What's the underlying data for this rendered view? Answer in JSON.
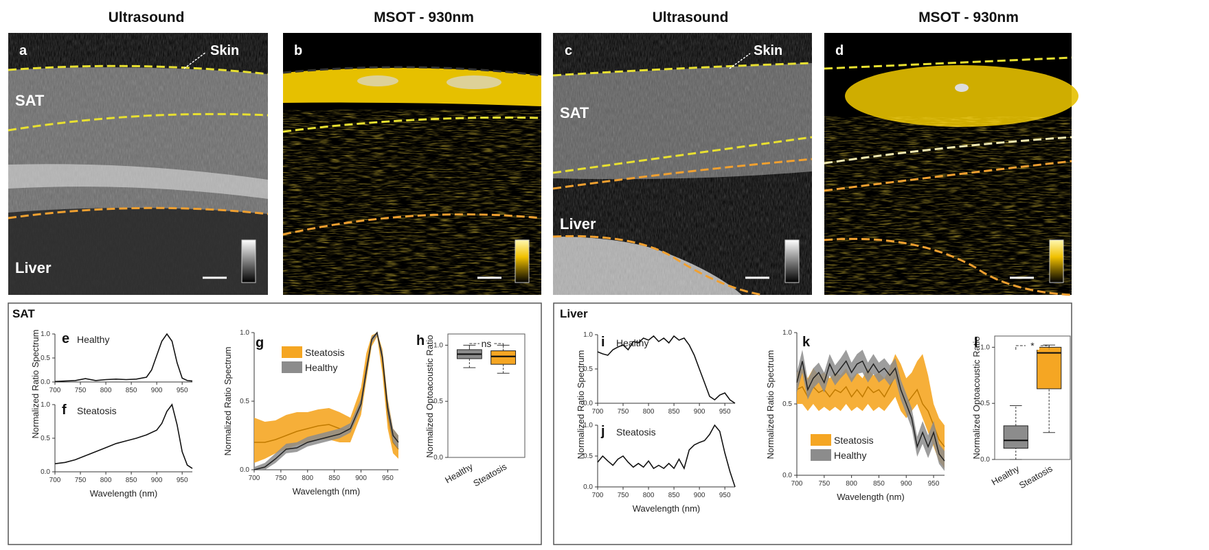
{
  "titles": [
    "Ultrasound",
    "MSOT - 930nm",
    "Ultrasound",
    "MSOT - 930nm"
  ],
  "panel_letters": [
    "a",
    "b",
    "c",
    "d"
  ],
  "image_labels": {
    "a": {
      "skin": "Skin",
      "sat": "SAT",
      "liver": "Liver"
    },
    "c": {
      "skin": "Skin",
      "sat": "SAT",
      "liver": "Liver"
    }
  },
  "sections": {
    "sat": "SAT",
    "liver": "Liver"
  },
  "colors": {
    "steatosis": "#f5a623",
    "healthy": "#8c8c8c",
    "msot": "#f0c000"
  },
  "chart_data": [
    {
      "id": "e",
      "type": "line",
      "letter": "e",
      "title": "Healthy",
      "ylabel": "Normalized Ratio Spectrum",
      "xlabel": "Wavelength (nm)",
      "xlim": [
        700,
        970
      ],
      "ylim": [
        0,
        1
      ],
      "xticks": [
        "700",
        "750",
        "800",
        "850",
        "900",
        "950"
      ],
      "yticks": [
        "0.0",
        "0.5",
        "1.0"
      ],
      "x": [
        700,
        720,
        740,
        760,
        780,
        800,
        820,
        840,
        860,
        880,
        890,
        900,
        910,
        920,
        930,
        940,
        950,
        960,
        970
      ],
      "y": [
        0.01,
        0.02,
        0.03,
        0.07,
        0.03,
        0.05,
        0.06,
        0.05,
        0.06,
        0.1,
        0.25,
        0.55,
        0.85,
        1.0,
        0.85,
        0.4,
        0.08,
        0.03,
        0.02
      ]
    },
    {
      "id": "f",
      "type": "line",
      "letter": "f",
      "title": "Steatosis",
      "ylabel": "",
      "xlabel": "Wavelength (nm)",
      "xlim": [
        700,
        970
      ],
      "ylim": [
        0,
        1
      ],
      "xticks": [
        "700",
        "750",
        "800",
        "850",
        "900",
        "950"
      ],
      "yticks": [
        "0.0",
        "0.5",
        "1.0"
      ],
      "x": [
        700,
        720,
        740,
        760,
        780,
        800,
        820,
        840,
        860,
        880,
        900,
        910,
        920,
        930,
        940,
        950,
        960,
        970
      ],
      "y": [
        0.12,
        0.14,
        0.18,
        0.24,
        0.3,
        0.36,
        0.42,
        0.46,
        0.5,
        0.55,
        0.62,
        0.72,
        0.9,
        1.0,
        0.7,
        0.3,
        0.1,
        0.05
      ]
    },
    {
      "id": "g",
      "type": "area",
      "letter": "g",
      "ylabel": "Normalized Ratio Spectrum",
      "xlabel": "Wavelength (nm)",
      "xlim": [
        700,
        970
      ],
      "ylim": [
        0,
        1
      ],
      "xticks": [
        "700",
        "750",
        "800",
        "850",
        "900",
        "950"
      ],
      "yticks": [
        "0.0",
        "0.5",
        "1.0"
      ],
      "x": [
        700,
        720,
        740,
        760,
        780,
        800,
        820,
        840,
        860,
        880,
        900,
        910,
        920,
        930,
        940,
        950,
        960,
        970
      ],
      "series": [
        {
          "name": "Steatosis",
          "mean": [
            0.2,
            0.2,
            0.22,
            0.25,
            0.28,
            0.3,
            0.32,
            0.33,
            0.3,
            0.28,
            0.5,
            0.75,
            0.95,
            1.0,
            0.8,
            0.4,
            0.2,
            0.15
          ],
          "lower": [
            0.05,
            0.08,
            0.12,
            0.15,
            0.18,
            0.2,
            0.22,
            0.22,
            0.2,
            0.2,
            0.4,
            0.65,
            0.9,
            0.97,
            0.7,
            0.3,
            0.12,
            0.08
          ],
          "upper": [
            0.38,
            0.35,
            0.36,
            0.4,
            0.42,
            0.42,
            0.44,
            0.45,
            0.42,
            0.38,
            0.6,
            0.85,
            0.98,
            1.0,
            0.88,
            0.52,
            0.3,
            0.25
          ]
        },
        {
          "name": "Healthy",
          "mean": [
            0.0,
            0.02,
            0.08,
            0.15,
            0.16,
            0.2,
            0.22,
            0.24,
            0.26,
            0.3,
            0.48,
            0.72,
            0.95,
            1.0,
            0.82,
            0.45,
            0.25,
            0.2
          ],
          "lower": [
            0.0,
            0.0,
            0.05,
            0.12,
            0.13,
            0.17,
            0.19,
            0.21,
            0.23,
            0.27,
            0.44,
            0.68,
            0.92,
            0.98,
            0.78,
            0.4,
            0.2,
            0.15
          ],
          "upper": [
            0.02,
            0.05,
            0.12,
            0.19,
            0.2,
            0.24,
            0.26,
            0.28,
            0.3,
            0.34,
            0.52,
            0.76,
            0.97,
            1.0,
            0.86,
            0.5,
            0.3,
            0.25
          ]
        }
      ]
    },
    {
      "id": "h",
      "type": "box",
      "letter": "h",
      "significance": "ns",
      "ylabel": "Normalized Optoacoustic Ratio",
      "categories": [
        "Healthy",
        "Steatosis"
      ],
      "ylim": [
        0,
        1.1
      ],
      "yticks": [
        "0.0",
        "0.5",
        "1.0"
      ],
      "boxes": [
        {
          "min": 0.8,
          "q1": 0.88,
          "median": 0.92,
          "q3": 0.96,
          "max": 1.0
        },
        {
          "min": 0.75,
          "q1": 0.83,
          "median": 0.9,
          "q3": 0.95,
          "max": 1.0
        }
      ]
    },
    {
      "id": "i",
      "type": "line",
      "letter": "i",
      "title": "Healthy",
      "ylabel": "Normalized Ratio Spectrum",
      "xlabel": "",
      "xlim": [
        700,
        970
      ],
      "ylim": [
        0,
        1
      ],
      "xticks": [
        "700",
        "750",
        "800",
        "850",
        "900",
        "950"
      ],
      "yticks": [
        "0.0",
        "0.5",
        "1.0"
      ],
      "x": [
        700,
        710,
        720,
        730,
        740,
        750,
        760,
        770,
        780,
        790,
        800,
        810,
        820,
        830,
        840,
        850,
        860,
        870,
        880,
        890,
        900,
        910,
        920,
        930,
        940,
        950,
        960,
        970
      ],
      "y": [
        0.75,
        0.72,
        0.7,
        0.78,
        0.82,
        0.85,
        0.78,
        0.9,
        0.88,
        0.95,
        0.92,
        0.98,
        0.9,
        0.95,
        0.88,
        0.98,
        0.92,
        0.95,
        0.85,
        0.7,
        0.5,
        0.3,
        0.1,
        0.05,
        0.12,
        0.15,
        0.05,
        0.0
      ]
    },
    {
      "id": "j",
      "type": "line",
      "letter": "j",
      "title": "Steatosis",
      "ylabel": "",
      "xlabel": "Wavelength (nm)",
      "xlim": [
        700,
        970
      ],
      "ylim": [
        0,
        1
      ],
      "xticks": [
        "700",
        "750",
        "800",
        "850",
        "900",
        "950"
      ],
      "yticks": [
        "0.0",
        "0.5",
        "1.0"
      ],
      "x": [
        700,
        710,
        720,
        730,
        740,
        750,
        760,
        770,
        780,
        790,
        800,
        810,
        820,
        830,
        840,
        850,
        860,
        870,
        880,
        890,
        900,
        910,
        920,
        930,
        940,
        950,
        960,
        970
      ],
      "y": [
        0.4,
        0.5,
        0.42,
        0.35,
        0.45,
        0.5,
        0.4,
        0.32,
        0.38,
        0.32,
        0.42,
        0.3,
        0.35,
        0.3,
        0.38,
        0.3,
        0.45,
        0.3,
        0.6,
        0.68,
        0.72,
        0.75,
        0.85,
        1.0,
        0.9,
        0.55,
        0.25,
        0.0
      ]
    },
    {
      "id": "k",
      "type": "area",
      "letter": "k",
      "ylabel": "Normalized Ratio Spectrum",
      "xlabel": "Wavelength (nm)",
      "xlim": [
        700,
        970
      ],
      "ylim": [
        0,
        1
      ],
      "xticks": [
        "700",
        "750",
        "800",
        "850",
        "900",
        "950"
      ],
      "yticks": [
        "0.0",
        "0.5",
        "1.0"
      ],
      "x": [
        700,
        710,
        720,
        730,
        740,
        750,
        760,
        770,
        780,
        790,
        800,
        810,
        820,
        830,
        840,
        850,
        860,
        870,
        880,
        890,
        900,
        910,
        920,
        930,
        940,
        950,
        960,
        970
      ],
      "series": [
        {
          "name": "Steatosis",
          "mean": [
            0.6,
            0.62,
            0.55,
            0.62,
            0.58,
            0.6,
            0.55,
            0.6,
            0.58,
            0.62,
            0.55,
            0.6,
            0.55,
            0.62,
            0.58,
            0.6,
            0.55,
            0.62,
            0.7,
            0.6,
            0.5,
            0.55,
            0.6,
            0.5,
            0.45,
            0.35,
            0.25,
            0.2
          ],
          "lower": [
            0.5,
            0.5,
            0.45,
            0.5,
            0.45,
            0.48,
            0.45,
            0.48,
            0.45,
            0.5,
            0.45,
            0.48,
            0.45,
            0.5,
            0.45,
            0.48,
            0.45,
            0.5,
            0.55,
            0.45,
            0.4,
            0.45,
            0.5,
            0.4,
            0.3,
            0.2,
            0.1,
            0.05
          ],
          "upper": [
            0.72,
            0.75,
            0.68,
            0.75,
            0.7,
            0.72,
            0.68,
            0.72,
            0.7,
            0.75,
            0.68,
            0.72,
            0.68,
            0.75,
            0.7,
            0.72,
            0.68,
            0.75,
            0.85,
            0.78,
            0.68,
            0.72,
            0.8,
            0.85,
            0.7,
            0.5,
            0.4,
            0.35
          ]
        },
        {
          "name": "Healthy",
          "mean": [
            0.65,
            0.8,
            0.6,
            0.68,
            0.72,
            0.65,
            0.78,
            0.7,
            0.75,
            0.8,
            0.72,
            0.78,
            0.8,
            0.72,
            0.78,
            0.72,
            0.75,
            0.7,
            0.75,
            0.6,
            0.5,
            0.4,
            0.2,
            0.3,
            0.2,
            0.3,
            0.15,
            0.1
          ],
          "lower": [
            0.58,
            0.72,
            0.53,
            0.61,
            0.65,
            0.58,
            0.7,
            0.63,
            0.68,
            0.72,
            0.65,
            0.71,
            0.72,
            0.65,
            0.71,
            0.65,
            0.68,
            0.63,
            0.68,
            0.53,
            0.43,
            0.33,
            0.13,
            0.22,
            0.12,
            0.22,
            0.08,
            0.03
          ],
          "upper": [
            0.72,
            0.88,
            0.67,
            0.75,
            0.79,
            0.72,
            0.85,
            0.77,
            0.82,
            0.88,
            0.79,
            0.85,
            0.88,
            0.79,
            0.85,
            0.79,
            0.82,
            0.77,
            0.82,
            0.67,
            0.57,
            0.47,
            0.27,
            0.38,
            0.28,
            0.38,
            0.22,
            0.17
          ]
        }
      ]
    },
    {
      "id": "l",
      "type": "box",
      "letter": "l",
      "significance": "*",
      "ylabel": "Normalized Optoacoustic Ratio",
      "categories": [
        "Healthy",
        "Steatosis"
      ],
      "ylim": [
        0,
        1.1
      ],
      "yticks": [
        "0.0",
        "0.5",
        "1.0"
      ],
      "boxes": [
        {
          "min": 0.0,
          "q1": 0.1,
          "median": 0.17,
          "q3": 0.3,
          "max": 0.48
        },
        {
          "min": 0.24,
          "q1": 0.63,
          "median": 0.95,
          "q3": 1.0,
          "max": 1.02
        }
      ]
    }
  ]
}
